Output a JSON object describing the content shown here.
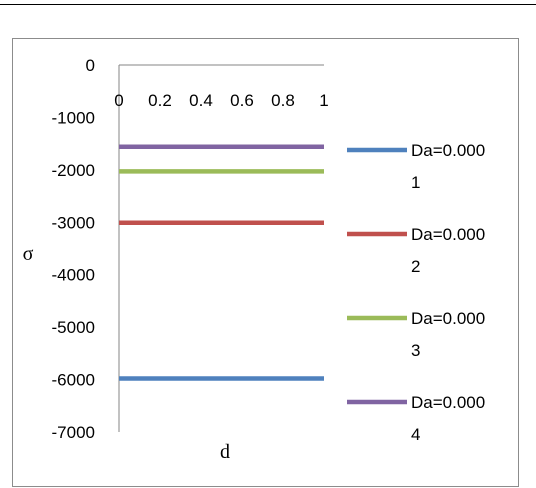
{
  "chart_data": {
    "type": "line",
    "title": "",
    "xlabel": "d",
    "ylabel": "σ",
    "x": [
      0,
      1
    ],
    "xlim": [
      0,
      1
    ],
    "ylim": [
      -7000,
      0
    ],
    "x_ticks": [
      "0",
      "0.2",
      "0.4",
      "0.6",
      "0.8",
      "1"
    ],
    "y_ticks": [
      "0",
      "-1000",
      "-2000",
      "-3000",
      "-4000",
      "-5000",
      "-6000",
      "-7000"
    ],
    "grid": false,
    "legend_position": "right",
    "series": [
      {
        "name": "Da=0.0001",
        "name_lines": [
          "Da=0.000",
          "1"
        ],
        "color": "#4f81bd",
        "values": [
          -5980,
          -5980
        ]
      },
      {
        "name": "Da=0.0002",
        "name_lines": [
          "Da=0.000",
          "2"
        ],
        "color": "#c0504d",
        "values": [
          -3010,
          -3010
        ]
      },
      {
        "name": "Da=0.0003",
        "name_lines": [
          "Da=0.000",
          "3"
        ],
        "color": "#9bbb59",
        "values": [
          -2030,
          -2030
        ]
      },
      {
        "name": "Da=0.0004",
        "name_lines": [
          "Da=0.000",
          "4"
        ],
        "color": "#8064a2",
        "values": [
          -1560,
          -1560
        ]
      }
    ]
  }
}
